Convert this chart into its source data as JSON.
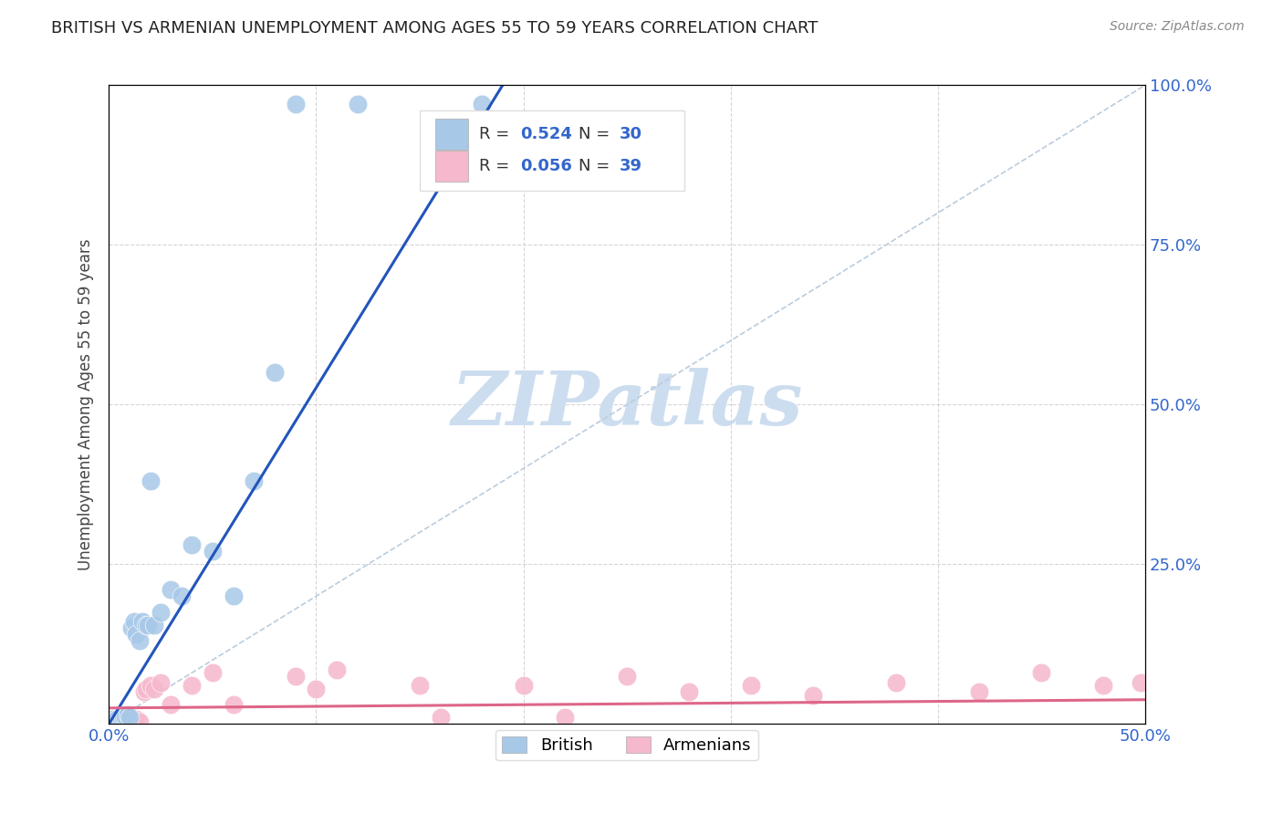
{
  "title": "BRITISH VS ARMENIAN UNEMPLOYMENT AMONG AGES 55 TO 59 YEARS CORRELATION CHART",
  "source": "Source: ZipAtlas.com",
  "ylabel": "Unemployment Among Ages 55 to 59 years",
  "xlim": [
    0,
    0.5
  ],
  "ylim": [
    0,
    1.0
  ],
  "british_color": "#a8c8e8",
  "armenian_color": "#f5b8cc",
  "british_line_color": "#2255bb",
  "armenian_line_color": "#dd6688",
  "diagonal_color": "#bbccdd",
  "watermark": "ZIPatlas",
  "watermark_color": "#ccddef",
  "legend_r1": "0.524",
  "legend_n1": "30",
  "legend_r2": "0.056",
  "legend_n2": "39",
  "british_x": [
    0.001,
    0.002,
    0.003,
    0.004,
    0.005,
    0.006,
    0.007,
    0.008,
    0.009,
    0.01,
    0.011,
    0.012,
    0.013,
    0.015,
    0.016,
    0.018,
    0.019,
    0.02,
    0.022,
    0.025,
    0.03,
    0.035,
    0.04,
    0.05,
    0.06,
    0.07,
    0.08,
    0.09,
    0.12,
    0.18
  ],
  "british_y": [
    0.008,
    0.008,
    0.005,
    0.008,
    0.005,
    0.008,
    0.01,
    0.012,
    0.015,
    0.01,
    0.15,
    0.16,
    0.14,
    0.13,
    0.16,
    0.155,
    0.155,
    0.38,
    0.155,
    0.175,
    0.21,
    0.2,
    0.28,
    0.27,
    0.2,
    0.38,
    0.55,
    0.97,
    0.97,
    0.97
  ],
  "armenian_x": [
    0.001,
    0.002,
    0.003,
    0.004,
    0.005,
    0.006,
    0.007,
    0.008,
    0.009,
    0.01,
    0.011,
    0.012,
    0.013,
    0.015,
    0.017,
    0.018,
    0.02,
    0.022,
    0.025,
    0.03,
    0.04,
    0.05,
    0.06,
    0.09,
    0.1,
    0.11,
    0.15,
    0.16,
    0.2,
    0.22,
    0.25,
    0.28,
    0.31,
    0.34,
    0.38,
    0.42,
    0.45,
    0.48,
    0.498
  ],
  "armenian_y": [
    0.008,
    0.005,
    0.008,
    0.005,
    0.003,
    0.008,
    0.005,
    0.008,
    0.01,
    0.005,
    0.008,
    0.005,
    0.008,
    0.003,
    0.05,
    0.055,
    0.06,
    0.055,
    0.065,
    0.03,
    0.06,
    0.08,
    0.03,
    0.075,
    0.055,
    0.085,
    0.06,
    0.01,
    0.06,
    0.01,
    0.075,
    0.05,
    0.06,
    0.045,
    0.065,
    0.05,
    0.08,
    0.06,
    0.065
  ],
  "brit_line_x": [
    0.0,
    0.19
  ],
  "brit_line_y": [
    0.0,
    1.0
  ],
  "arm_line_x": [
    0.0,
    0.5
  ],
  "arm_line_y": [
    0.025,
    0.038
  ]
}
